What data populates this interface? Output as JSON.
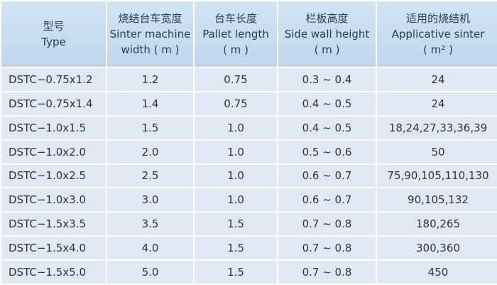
{
  "table": {
    "header": [
      [
        "型号",
        "Type"
      ],
      [
        "烧结台车宽度",
        "Sinter machine",
        "width ( m )"
      ],
      [
        "台车长度",
        "Pallet length",
        "( m )"
      ],
      [
        "栏板高度",
        "Side wall height",
        "( m )"
      ],
      [
        "适用的烧结机",
        "Applicative sinter",
        "( m² )"
      ]
    ],
    "rows": [
      [
        "DSTC−0.75x1.2",
        "1.2",
        "0.75",
        "0.3 ~ 0.4",
        "24"
      ],
      [
        "DSTC−0.75x1.4",
        "1.4",
        "0.75",
        "0.4 ~ 0.5",
        "24"
      ],
      [
        "DSTC−1.0x1.5",
        "1.5",
        "1.0",
        "0.4 ~ 0.5",
        "18,24,27,33,36,39"
      ],
      [
        "DSTC−1.0x2.0",
        "2.0",
        "1.0",
        "0.5 ~ 0.6",
        "50"
      ],
      [
        "DSTC−1.0x2.5",
        "2.5",
        "1.0",
        "0.6 ~ 0.7",
        "75,90,105,110,130"
      ],
      [
        "DSTC−1.0x3.0",
        "3.0",
        "1.0",
        "0.6 ~ 0.7",
        "90,105,132"
      ],
      [
        "DSTC−1.5x3.5",
        "3.5",
        "1.5",
        "0.7 ~ 0.8",
        "180,265"
      ],
      [
        "DSTC−1.5x4.0",
        "4.0",
        "1.5",
        "0.7 ~ 0.8",
        "300,360"
      ],
      [
        "DSTC−1.5x5.0",
        "5.0",
        "1.5",
        "0.7 ~ 0.8",
        "450"
      ]
    ]
  }
}
